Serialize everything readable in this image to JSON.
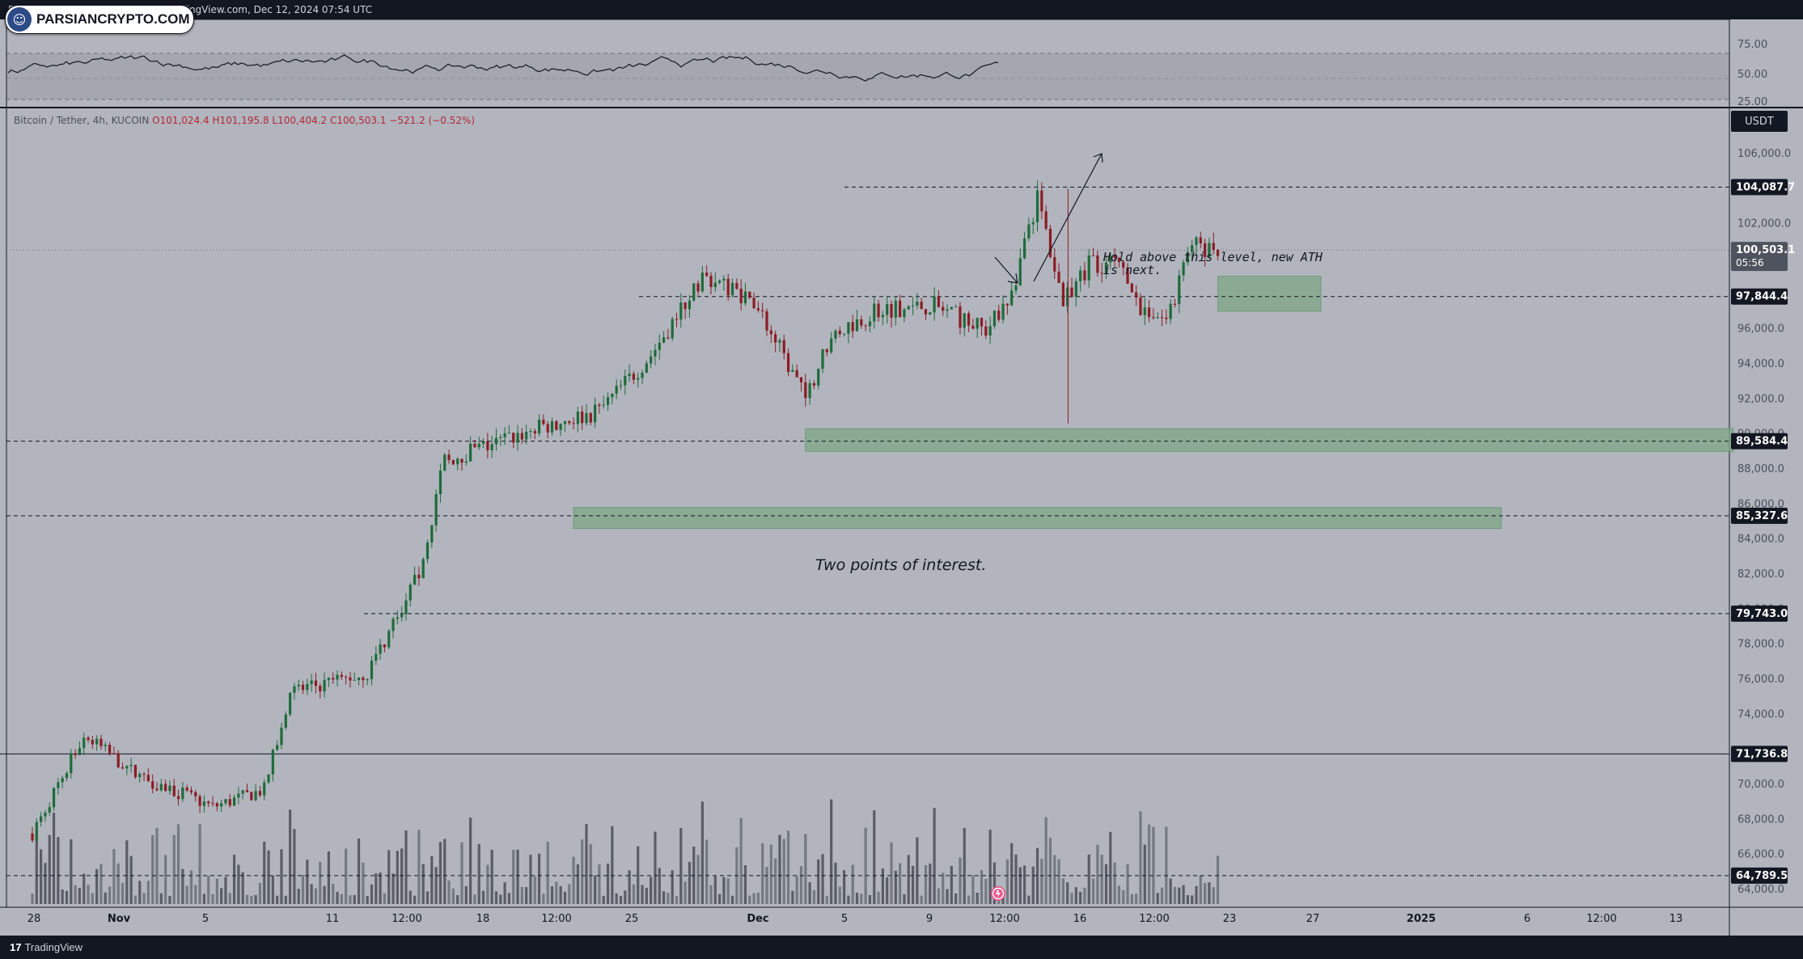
{
  "header": {
    "title": "Bitcoin / TetherUS, 4h, KUCOIN · TradingView.com, Dec 12, 2024 07:54 UTC"
  },
  "logo": {
    "text": "PARSIANCRYPTO.COM",
    "icon": "person-icon"
  },
  "symbol_bar": {
    "symbol": "Bitcoin / Tether, 4h, KUCOIN",
    "open": "O101,024.4",
    "high": "H101,195.8",
    "low": "L100,404.2",
    "close": "C100,503.1",
    "change": "−521.2 (−0.52%)"
  },
  "price_scale": {
    "currency": "USDT",
    "ticks": [
      "106,000.0",
      "102,000.0",
      "96,000.0",
      "94,000.0",
      "92,000.0",
      "90,000.0",
      "88,000.0",
      "86,000.0",
      "84,000.0",
      "82,000.0",
      "80,000.0",
      "78,000.0",
      "76,000.0",
      "74,000.0",
      "70,000.0",
      "68,000.0",
      "66,000.0",
      "64,000.0"
    ],
    "markers": [
      {
        "label": "104,087.7",
        "style": "dark"
      },
      {
        "label": "100,503.1",
        "sub": "05:56",
        "style": "current"
      },
      {
        "label": "97,844.4",
        "style": "dark"
      },
      {
        "label": "89,584.4",
        "style": "dark"
      },
      {
        "label": "85,327.6",
        "style": "dark"
      },
      {
        "label": "79,743.0",
        "style": "dark"
      },
      {
        "label": "71,736.8",
        "style": "dark"
      },
      {
        "label": "64,789.5",
        "style": "dark"
      }
    ]
  },
  "rsi_scale": {
    "ticks": [
      "75.00",
      "50.00",
      "25.00"
    ]
  },
  "time_axis": {
    "labels": [
      "28",
      "Nov",
      "5",
      "11",
      "12:00",
      "18",
      "12:00",
      "25",
      "Dec",
      "5",
      "9",
      "12:00",
      "16",
      "12:00",
      "23",
      "27",
      "2025",
      "6",
      "12:00",
      "13"
    ]
  },
  "annotations": {
    "hold_text_line1": "Hold above this level, new ATH",
    "hold_text_line2": "is next.",
    "interest_text": "Two points of interest."
  },
  "footer": {
    "brand": "TradingView",
    "brand_mark": "17"
  },
  "chart_data": {
    "type": "candlestick",
    "symbol": "Bitcoin / Tether",
    "timeframe": "4h",
    "exchange": "KUCOIN",
    "ylim": [
      63500,
      108000
    ],
    "horizontal_levels": [
      104087.7,
      97844.4,
      89584.4,
      85327.6,
      79743.0,
      71736.8,
      64789.5
    ],
    "zones": [
      {
        "from_date": "Nov 26",
        "to_date": "Jan 1",
        "low": 89000,
        "high": 90300
      },
      {
        "from_date": "Nov 17",
        "to_date": "Dec 23",
        "low": 84600,
        "high": 85800
      },
      {
        "from_date": "Dec 12",
        "to_date": "Dec 16",
        "low": 97000,
        "high": 99000
      }
    ],
    "price_path": [
      {
        "date": "Oct 27",
        "close": 67200
      },
      {
        "date": "Oct 29",
        "close": 72800
      },
      {
        "date": "Oct 31",
        "close": 70600
      },
      {
        "date": "Nov 3",
        "close": 68700
      },
      {
        "date": "Nov 5",
        "close": 69700
      },
      {
        "date": "Nov 6",
        "close": 75300
      },
      {
        "date": "Nov 9",
        "close": 76300
      },
      {
        "date": "Nov 11",
        "close": 82000
      },
      {
        "date": "Nov 12",
        "close": 88500
      },
      {
        "date": "Nov 13",
        "close": 89000
      },
      {
        "date": "Nov 16",
        "close": 90500
      },
      {
        "date": "Nov 18",
        "close": 91300
      },
      {
        "date": "Nov 20",
        "close": 94500
      },
      {
        "date": "Nov 22",
        "close": 99000
      },
      {
        "date": "Nov 24",
        "close": 97700
      },
      {
        "date": "Nov 26",
        "close": 92000
      },
      {
        "date": "Nov 27",
        "close": 95700
      },
      {
        "date": "Nov 29",
        "close": 97200
      },
      {
        "date": "Dec 1",
        "close": 97300
      },
      {
        "date": "Dec 3",
        "close": 95900
      },
      {
        "date": "Dec 4",
        "close": 98000
      },
      {
        "date": "Dec 5",
        "close": 103500
      },
      {
        "date": "Dec 6",
        "close": 97400
      },
      {
        "date": "Dec 7",
        "close": 99700
      },
      {
        "date": "Dec 8",
        "close": 99800
      },
      {
        "date": "Dec 9",
        "close": 97300
      },
      {
        "date": "Dec 10",
        "close": 96500
      },
      {
        "date": "Dec 11",
        "close": 100900
      },
      {
        "date": "Dec 12",
        "close": 100503.1
      }
    ]
  }
}
